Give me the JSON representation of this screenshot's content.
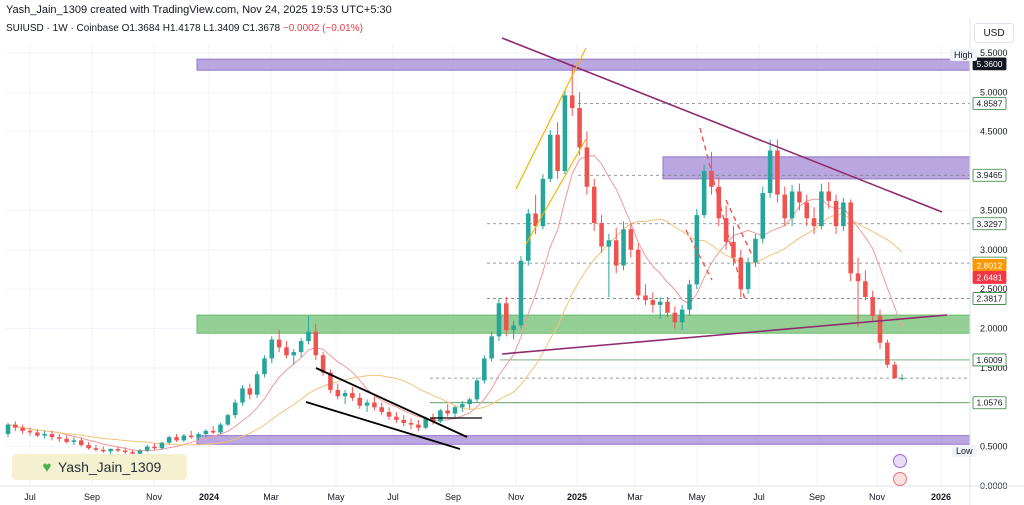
{
  "header": {
    "creator": "Yash_Jain_1309 created with TradingView.com, Nov 24, 2025 19:53 UTC+5:30"
  },
  "symbol": {
    "name": "SUIUSD · 1W · Coinbase",
    "open": "O1.3684",
    "high": "H1.4178",
    "low": "L1.3409",
    "close": "C1.3678",
    "change": "−0.0002 (−0.01%)"
  },
  "currency": "USD",
  "author_badge": "Yash_Jain_1309",
  "labels": {
    "high": "High",
    "low": "Low"
  },
  "colors": {
    "up": "#26a69a",
    "down": "#ef5350",
    "purple_zone": "#b39ddb",
    "green_zone": "#81c784",
    "trendline": "#8e2a6e",
    "ma_short": "#ef9a9a",
    "ma_long": "#f5c27a"
  },
  "chart_data": {
    "type": "candlestick",
    "x_axis_labels": [
      "Jul",
      "Sep",
      "Nov",
      "2024",
      "Mar",
      "May",
      "Jul",
      "Sep",
      "Nov",
      "2025",
      "Mar",
      "May",
      "Jul",
      "Sep",
      "Nov",
      "2026"
    ],
    "y_ticks": [
      "5.5000",
      "5.0000",
      "4.5000",
      "3.5000",
      "3.0000",
      "2.5000",
      "2.0000",
      "1.5000",
      "0.5000",
      "0.0000"
    ],
    "y_range": [
      0,
      5.6
    ],
    "price_labels": [
      {
        "value": 5.36,
        "text": "5.3600",
        "style": "dark"
      },
      {
        "value": 4.8587,
        "text": "4.8587",
        "style": "outline"
      },
      {
        "value": 3.9465,
        "text": "3.9465",
        "style": "outline"
      },
      {
        "value": 3.3297,
        "text": "3.3297",
        "style": "outline"
      },
      {
        "value": 2.8297,
        "text": "2.8297",
        "style": "outline"
      },
      {
        "value": 2.8012,
        "text": "2.8012",
        "style": "orange"
      },
      {
        "value": 2.6481,
        "text": "2.6481",
        "style": "red"
      },
      {
        "value": 2.3817,
        "text": "2.3817",
        "style": "outline"
      },
      {
        "value": 1.6009,
        "text": "1.6009",
        "style": "outline"
      },
      {
        "value": 1.0576,
        "text": "1.0576",
        "style": "outline"
      }
    ],
    "zones": [
      {
        "name": "top resistance",
        "from": 5.28,
        "to": 5.42,
        "color": "purple"
      },
      {
        "name": "mid resistance",
        "from": 3.9,
        "to": 4.18,
        "color": "purple"
      },
      {
        "name": "support",
        "from": 1.94,
        "to": 2.17,
        "color": "green"
      },
      {
        "name": "bottom support",
        "from": 0.53,
        "to": 0.64,
        "color": "purple"
      }
    ],
    "candles": [
      [
        0.66,
        0.8,
        0.62,
        0.78
      ],
      [
        0.78,
        0.82,
        0.7,
        0.74
      ],
      [
        0.74,
        0.78,
        0.66,
        0.7
      ],
      [
        0.7,
        0.74,
        0.64,
        0.68
      ],
      [
        0.68,
        0.72,
        0.62,
        0.64
      ],
      [
        0.64,
        0.7,
        0.6,
        0.66
      ],
      [
        0.66,
        0.7,
        0.58,
        0.62
      ],
      [
        0.62,
        0.66,
        0.56,
        0.6
      ],
      [
        0.6,
        0.64,
        0.54,
        0.56
      ],
      [
        0.56,
        0.62,
        0.52,
        0.58
      ],
      [
        0.58,
        0.62,
        0.5,
        0.52
      ],
      [
        0.52,
        0.56,
        0.46,
        0.48
      ],
      [
        0.48,
        0.52,
        0.44,
        0.46
      ],
      [
        0.46,
        0.5,
        0.42,
        0.44
      ],
      [
        0.44,
        0.48,
        0.4,
        0.47
      ],
      [
        0.47,
        0.5,
        0.43,
        0.45
      ],
      [
        0.45,
        0.49,
        0.41,
        0.43
      ],
      [
        0.43,
        0.46,
        0.38,
        0.41
      ],
      [
        0.41,
        0.47,
        0.39,
        0.45
      ],
      [
        0.45,
        0.52,
        0.43,
        0.5
      ],
      [
        0.5,
        0.54,
        0.46,
        0.48
      ],
      [
        0.48,
        0.56,
        0.46,
        0.55
      ],
      [
        0.55,
        0.64,
        0.53,
        0.62
      ],
      [
        0.62,
        0.66,
        0.56,
        0.58
      ],
      [
        0.58,
        0.66,
        0.56,
        0.64
      ],
      [
        0.64,
        0.7,
        0.6,
        0.62
      ],
      [
        0.62,
        0.68,
        0.58,
        0.66
      ],
      [
        0.66,
        0.72,
        0.62,
        0.7
      ],
      [
        0.7,
        0.76,
        0.66,
        0.68
      ],
      [
        0.68,
        0.8,
        0.66,
        0.78
      ],
      [
        0.78,
        0.92,
        0.76,
        0.9
      ],
      [
        0.9,
        1.1,
        0.86,
        1.06
      ],
      [
        1.06,
        1.28,
        1.02,
        1.24
      ],
      [
        1.24,
        1.3,
        1.1,
        1.16
      ],
      [
        1.16,
        1.46,
        1.12,
        1.42
      ],
      [
        1.42,
        1.66,
        1.38,
        1.62
      ],
      [
        1.62,
        1.9,
        1.56,
        1.86
      ],
      [
        1.86,
        1.98,
        1.7,
        1.76
      ],
      [
        1.76,
        1.84,
        1.62,
        1.66
      ],
      [
        1.66,
        1.74,
        1.54,
        1.7
      ],
      [
        1.7,
        1.88,
        1.64,
        1.84
      ],
      [
        1.84,
        2.16,
        1.8,
        1.96
      ],
      [
        1.96,
        2.06,
        1.6,
        1.66
      ],
      [
        1.66,
        1.7,
        1.4,
        1.44
      ],
      [
        1.44,
        1.48,
        1.18,
        1.22
      ],
      [
        1.22,
        1.3,
        1.1,
        1.14
      ],
      [
        1.14,
        1.22,
        1.04,
        1.18
      ],
      [
        1.18,
        1.26,
        1.08,
        1.12
      ],
      [
        1.12,
        1.18,
        0.98,
        1.02
      ],
      [
        1.02,
        1.1,
        0.94,
        1.06
      ],
      [
        1.06,
        1.14,
        0.96,
        1.0
      ],
      [
        1.0,
        1.06,
        0.9,
        0.94
      ],
      [
        0.94,
        1.0,
        0.84,
        0.88
      ],
      [
        0.88,
        0.94,
        0.8,
        0.84
      ],
      [
        0.84,
        0.9,
        0.76,
        0.8
      ],
      [
        0.8,
        0.86,
        0.72,
        0.78
      ],
      [
        0.78,
        0.84,
        0.7,
        0.74
      ],
      [
        0.74,
        0.88,
        0.72,
        0.86
      ],
      [
        0.86,
        0.92,
        0.78,
        0.82
      ],
      [
        0.82,
        0.98,
        0.8,
        0.96
      ],
      [
        0.96,
        1.04,
        0.88,
        0.92
      ],
      [
        0.92,
        1.02,
        0.86,
        1.0
      ],
      [
        1.0,
        1.08,
        0.94,
        1.04
      ],
      [
        1.04,
        1.12,
        0.98,
        1.1
      ],
      [
        1.1,
        1.38,
        1.06,
        1.34
      ],
      [
        1.34,
        1.66,
        1.3,
        1.62
      ],
      [
        1.62,
        1.96,
        1.58,
        1.9
      ],
      [
        1.9,
        2.38,
        1.84,
        2.32
      ],
      [
        2.32,
        2.4,
        1.9,
        1.98
      ],
      [
        1.98,
        2.1,
        1.86,
        2.04
      ],
      [
        2.04,
        2.92,
        2.0,
        2.86
      ],
      [
        2.86,
        3.52,
        2.8,
        3.46
      ],
      [
        3.46,
        3.7,
        3.2,
        3.3
      ],
      [
        3.3,
        3.96,
        3.26,
        3.9
      ],
      [
        3.9,
        4.52,
        3.86,
        4.46
      ],
      [
        4.46,
        4.62,
        3.9,
        4.0
      ],
      [
        4.0,
        5.02,
        3.96,
        4.96
      ],
      [
        4.96,
        5.36,
        4.7,
        4.8
      ],
      [
        4.8,
        5.0,
        4.2,
        4.3
      ],
      [
        4.3,
        4.5,
        3.7,
        3.8
      ],
      [
        3.8,
        3.9,
        3.24,
        3.34
      ],
      [
        3.34,
        3.44,
        2.96,
        3.04
      ],
      [
        3.04,
        3.2,
        2.4,
        3.12
      ],
      [
        3.12,
        3.28,
        2.7,
        2.8
      ],
      [
        2.8,
        3.36,
        2.74,
        3.26
      ],
      [
        3.26,
        3.34,
        2.9,
        3.0
      ],
      [
        3.0,
        3.08,
        2.36,
        2.42
      ],
      [
        2.42,
        2.56,
        2.3,
        2.36
      ],
      [
        2.36,
        2.46,
        2.2,
        2.3
      ],
      [
        2.3,
        2.4,
        2.12,
        2.34
      ],
      [
        2.34,
        2.4,
        2.14,
        2.2
      ],
      [
        2.2,
        2.28,
        2.0,
        2.08
      ],
      [
        2.08,
        2.3,
        1.98,
        2.24
      ],
      [
        2.24,
        2.62,
        2.16,
        2.56
      ],
      [
        2.56,
        3.52,
        2.5,
        3.44
      ],
      [
        3.44,
        4.08,
        3.4,
        4.0
      ],
      [
        4.0,
        4.24,
        3.7,
        3.8
      ],
      [
        3.8,
        3.92,
        3.3,
        3.4
      ],
      [
        3.4,
        3.56,
        3.0,
        3.1
      ],
      [
        3.1,
        3.3,
        2.8,
        2.9
      ],
      [
        2.9,
        3.0,
        2.4,
        2.5
      ],
      [
        2.5,
        2.9,
        2.44,
        2.84
      ],
      [
        2.84,
        3.2,
        2.78,
        3.14
      ],
      [
        3.14,
        3.8,
        3.08,
        3.72
      ],
      [
        3.72,
        4.4,
        3.66,
        4.26
      ],
      [
        4.26,
        4.4,
        3.6,
        3.7
      ],
      [
        3.7,
        3.8,
        3.3,
        3.4
      ],
      [
        3.4,
        3.82,
        3.3,
        3.74
      ],
      [
        3.74,
        3.84,
        3.5,
        3.6
      ],
      [
        3.6,
        3.7,
        3.3,
        3.4
      ],
      [
        3.4,
        3.54,
        3.2,
        3.3
      ],
      [
        3.3,
        3.84,
        3.26,
        3.74
      ],
      [
        3.74,
        3.86,
        3.52,
        3.62
      ],
      [
        3.62,
        3.7,
        3.2,
        3.3
      ],
      [
        3.3,
        3.66,
        3.24,
        3.6
      ],
      [
        3.6,
        3.64,
        2.6,
        2.7
      ],
      [
        2.7,
        2.9,
        2.02,
        2.6
      ],
      [
        2.6,
        2.74,
        2.36,
        2.4
      ],
      [
        2.4,
        2.48,
        2.1,
        2.16
      ],
      [
        2.16,
        2.24,
        1.74,
        1.82
      ],
      [
        1.82,
        1.86,
        1.5,
        1.54
      ],
      [
        1.54,
        1.58,
        1.36,
        1.37
      ],
      [
        1.37,
        1.42,
        1.34,
        1.37
      ]
    ]
  }
}
